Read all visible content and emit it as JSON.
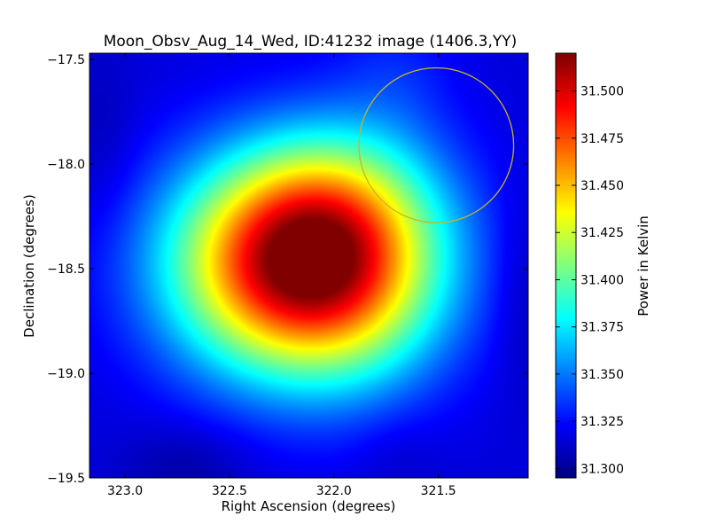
{
  "chart_data": {
    "type": "heatmap",
    "title": "Moon_Obsv_Aug_14_Wed, ID:41232 image (1406.3,YY)",
    "xlabel": "Right Ascension (degrees)",
    "ylabel": "Declination (degrees)",
    "colorbar_label": "Power in Kelvin",
    "xlim": [
      323.17,
      321.07
    ],
    "ylim": [
      -19.5,
      -17.47
    ],
    "x_ticks": [
      323.0,
      322.5,
      322.0,
      321.5
    ],
    "x_tick_labels": [
      "323.0",
      "322.5",
      "322.0",
      "321.5"
    ],
    "y_ticks": [
      -17.5,
      -18.0,
      -18.5,
      -19.0,
      -19.5
    ],
    "y_tick_labels": [
      "−17.5",
      "−18.0",
      "−18.5",
      "−19.0",
      "−19.5"
    ],
    "color_range": [
      31.295,
      31.52
    ],
    "colorbar_ticks": [
      31.3,
      31.325,
      31.35,
      31.375,
      31.4,
      31.425,
      31.45,
      31.475,
      31.5
    ],
    "colorbar_tick_labels": [
      "31.300",
      "31.325",
      "31.350",
      "31.375",
      "31.400",
      "31.425",
      "31.450",
      "31.475",
      "31.500"
    ],
    "colormap": "jet",
    "peak": {
      "ra": 322.17,
      "dec": -18.48,
      "value": 31.52
    },
    "circle": {
      "ra": 321.51,
      "dec": -17.91,
      "radius_deg": 0.37,
      "color": "#c8b428"
    },
    "background_level": 31.315,
    "grid": false
  }
}
